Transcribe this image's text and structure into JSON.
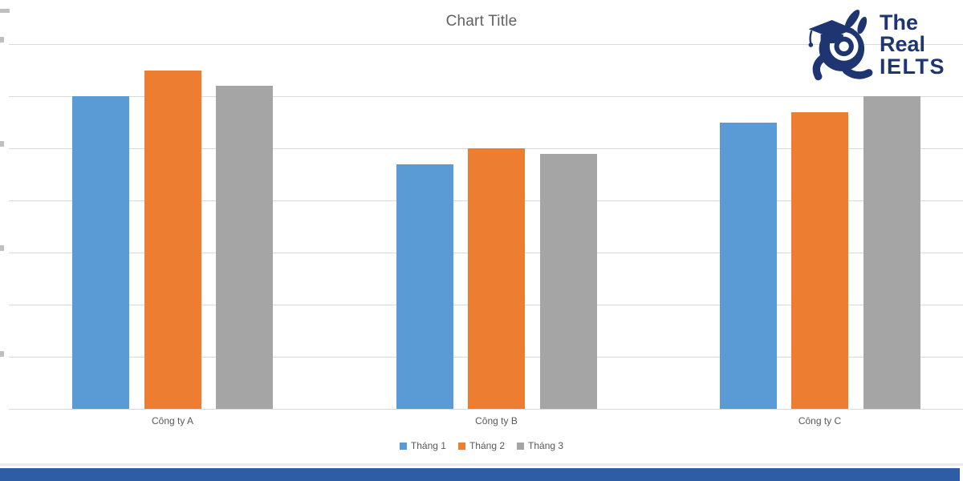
{
  "chart_data": {
    "type": "bar",
    "title": "Chart Title",
    "categories": [
      "Công ty A",
      "Công ty B",
      "Công ty C"
    ],
    "series": [
      {
        "name": "Tháng 1",
        "color": "#5b9bd5",
        "values": [
          6.0,
          4.7,
          5.5
        ]
      },
      {
        "name": "Tháng 2",
        "color": "#ed7d31",
        "values": [
          6.5,
          5.0,
          5.7
        ]
      },
      {
        "name": "Tháng 3",
        "color": "#a5a5a5",
        "values": [
          6.2,
          4.9,
          6.0
        ]
      }
    ],
    "xlabel": "",
    "ylabel": "",
    "ylim": [
      0,
      7
    ],
    "gridline_step": 1,
    "grid": true,
    "legend_position": "bottom",
    "y_axis_labels": "cropped-out-of-frame"
  },
  "colors": {
    "gridline": "#d9d9d9",
    "title_text": "#616161",
    "axis_text": "#595959",
    "footer_strip": "#2e5da6",
    "logo_navy": "#1f3572"
  },
  "logo": {
    "line1": "The Real",
    "line2": "IELTS",
    "mascot": "rabbit-graduation-cap-mascot"
  }
}
